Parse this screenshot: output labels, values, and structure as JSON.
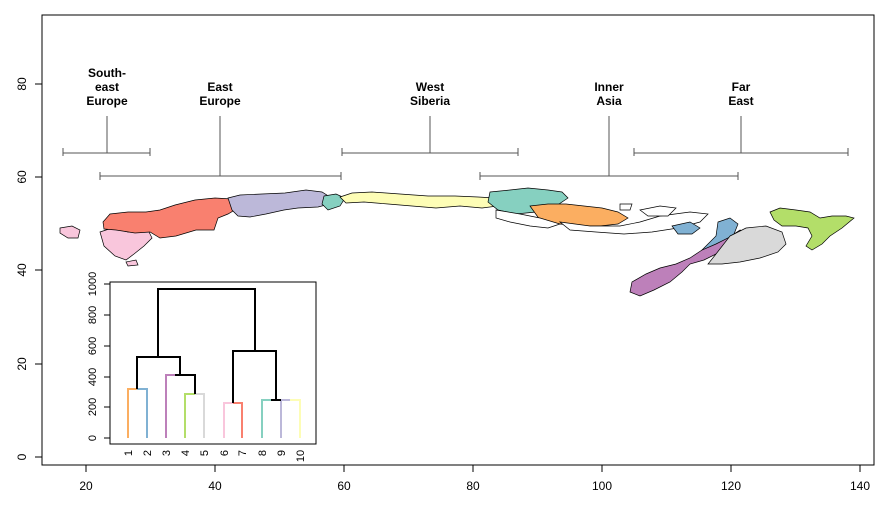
{
  "map": {
    "x_axis": {
      "ticks": [
        "20",
        "40",
        "60",
        "80",
        "100",
        "120",
        "140"
      ]
    },
    "y_axis": {
      "ticks": [
        "0",
        "20",
        "40",
        "60",
        "80"
      ]
    },
    "region_labels": [
      {
        "id": "southeast-europe",
        "lines": [
          "South-",
          "east",
          "Europe"
        ]
      },
      {
        "id": "east-europe",
        "lines": [
          "East",
          "Europe"
        ]
      },
      {
        "id": "west-siberia",
        "lines": [
          "West",
          "Siberia"
        ]
      },
      {
        "id": "inner-asia",
        "lines": [
          "Inner",
          "Asia"
        ]
      },
      {
        "id": "far-east",
        "lines": [
          "Far",
          "East"
        ]
      }
    ],
    "colors": {
      "pink": "#f9c6dc",
      "salmon": "#f9806f",
      "lavender": "#bcb8d9",
      "teal": "#86d0c0",
      "yellow": "#fdfdb6",
      "orange": "#fbae61",
      "blue": "#80b1d3",
      "purple": "#bd80ba",
      "gray": "#d9d9d9",
      "green": "#b3de69"
    }
  },
  "dendrogram_inset": {
    "y_ticks": [
      "0",
      "200",
      "400",
      "600",
      "800",
      "1000"
    ],
    "leaves": [
      "1",
      "2",
      "3",
      "4",
      "5",
      "6",
      "7",
      "8",
      "9",
      "10"
    ]
  }
}
